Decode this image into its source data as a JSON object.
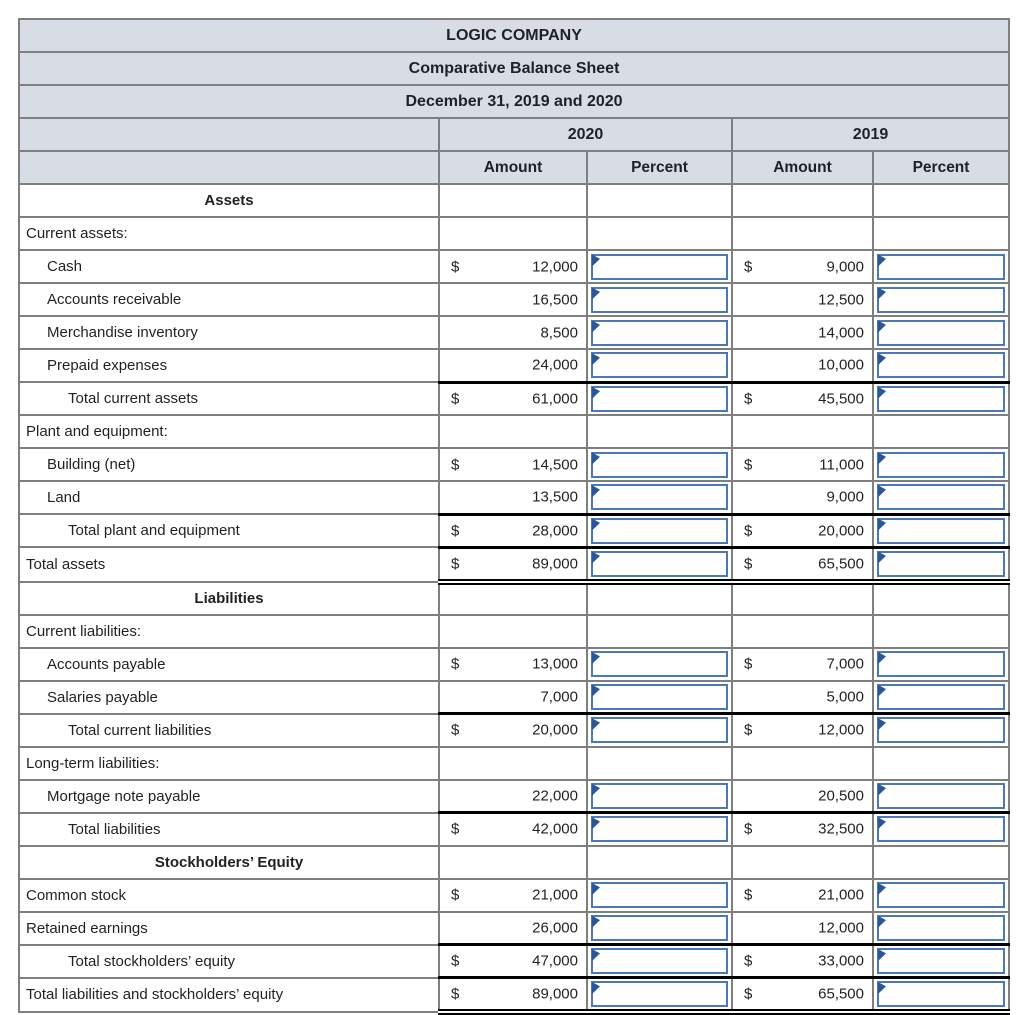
{
  "title_rows": [
    "LOGIC COMPANY",
    "Comparative Balance Sheet",
    "December 31, 2019 and 2020"
  ],
  "year_headers": [
    "2020",
    "2019"
  ],
  "col_headers": [
    "Amount",
    "Percent",
    "Amount",
    "Percent"
  ],
  "currency_symbol": "$",
  "colors": {
    "header_bg": "#d8dce5",
    "border_gray": "#7f7f7f",
    "input_border": "#4a79b8",
    "marker_blue": "#2b5796",
    "total_line": "#000000"
  },
  "rows": [
    {
      "type": "section",
      "label": "Assets"
    },
    {
      "type": "group",
      "label": "Current assets:",
      "indent": 0
    },
    {
      "type": "data",
      "label": "Cash",
      "indent": 1,
      "dollar_2020": true,
      "amount_2020": "12,000",
      "dollar_2019": true,
      "amount_2019": "9,000"
    },
    {
      "type": "data",
      "label": "Accounts receivable",
      "indent": 1,
      "amount_2020": "16,500",
      "amount_2019": "12,500"
    },
    {
      "type": "data",
      "label": "Merchandise inventory",
      "indent": 1,
      "amount_2020": "8,500",
      "amount_2019": "14,000"
    },
    {
      "type": "data",
      "label": "Prepaid expenses",
      "indent": 1,
      "amount_2020": "24,000",
      "amount_2019": "10,000"
    },
    {
      "type": "data",
      "label": "Total current assets",
      "indent": 2,
      "dollar_2020": true,
      "amount_2020": "61,000",
      "dollar_2019": true,
      "amount_2019": "45,500",
      "top_border": true
    },
    {
      "type": "group",
      "label": "Plant and equipment:",
      "indent": 0
    },
    {
      "type": "data",
      "label": "Building (net)",
      "indent": 1,
      "dollar_2020": true,
      "amount_2020": "14,500",
      "dollar_2019": true,
      "amount_2019": "11,000"
    },
    {
      "type": "data",
      "label": "Land",
      "indent": 1,
      "amount_2020": "13,500",
      "amount_2019": "9,000"
    },
    {
      "type": "data",
      "label": "Total plant and equipment",
      "indent": 2,
      "dollar_2020": true,
      "amount_2020": "28,000",
      "dollar_2019": true,
      "amount_2019": "20,000",
      "top_border": true
    },
    {
      "type": "data",
      "label": "Total assets",
      "indent": 0,
      "dollar_2020": true,
      "amount_2020": "89,000",
      "dollar_2019": true,
      "amount_2019": "65,500",
      "top_border": true,
      "double_bottom": true
    },
    {
      "type": "section",
      "label": "Liabilities"
    },
    {
      "type": "group",
      "label": "Current liabilities:",
      "indent": 0
    },
    {
      "type": "data",
      "label": "Accounts payable",
      "indent": 1,
      "dollar_2020": true,
      "amount_2020": "13,000",
      "dollar_2019": true,
      "amount_2019": "7,000"
    },
    {
      "type": "data",
      "label": "Salaries payable",
      "indent": 1,
      "amount_2020": "7,000",
      "amount_2019": "5,000"
    },
    {
      "type": "data",
      "label": "Total current liabilities",
      "indent": 2,
      "dollar_2020": true,
      "amount_2020": "20,000",
      "dollar_2019": true,
      "amount_2019": "12,000",
      "top_border": true
    },
    {
      "type": "group",
      "label": "Long-term liabilities:",
      "indent": 0
    },
    {
      "type": "data",
      "label": "Mortgage note payable",
      "indent": 1,
      "amount_2020": "22,000",
      "amount_2019": "20,500"
    },
    {
      "type": "data",
      "label": "Total liabilities",
      "indent": 2,
      "dollar_2020": true,
      "amount_2020": "42,000",
      "dollar_2019": true,
      "amount_2019": "32,500",
      "top_border": true
    },
    {
      "type": "section",
      "label": "Stockholders’ Equity"
    },
    {
      "type": "data",
      "label": "Common stock",
      "indent": 0,
      "dollar_2020": true,
      "amount_2020": "21,000",
      "dollar_2019": true,
      "amount_2019": "21,000"
    },
    {
      "type": "data",
      "label": "Retained earnings",
      "indent": 0,
      "amount_2020": "26,000",
      "amount_2019": "12,000"
    },
    {
      "type": "data",
      "label": "Total stockholders’ equity",
      "indent": 2,
      "dollar_2020": true,
      "amount_2020": "47,000",
      "dollar_2019": true,
      "amount_2019": "33,000",
      "top_border": true
    },
    {
      "type": "data",
      "label": "Total liabilities and stockholders’ equity",
      "indent": 0,
      "dollar_2020": true,
      "amount_2020": "89,000",
      "dollar_2019": true,
      "amount_2019": "65,500",
      "top_border": true,
      "double_bottom": true
    }
  ]
}
